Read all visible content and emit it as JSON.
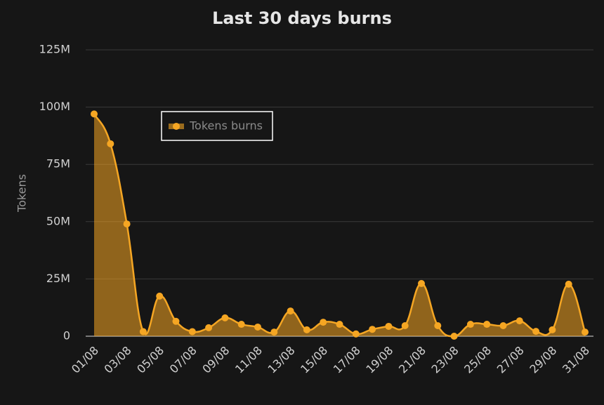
{
  "chart_data": {
    "type": "area",
    "title": "Last 30 days burns",
    "y_label": "Tokens",
    "categories": [
      "01/08",
      null,
      "03/08",
      null,
      "05/08",
      null,
      "07/08",
      null,
      "09/08",
      null,
      "11/08",
      null,
      "13/08",
      null,
      "15/08",
      null,
      "17/08",
      null,
      "19/08",
      null,
      "21/08",
      null,
      "23/08",
      null,
      "25/08",
      null,
      "27/08",
      null,
      "29/08",
      null,
      "31/08"
    ],
    "series": [
      {
        "name": "Tokens burns",
        "color": "#f5a623",
        "values": [
          97000000,
          84000000,
          49000000,
          2000000,
          17500000,
          6500000,
          2000000,
          3700000,
          8000000,
          5200000,
          4000000,
          1800000,
          11000000,
          2800000,
          6100000,
          5200000,
          1000000,
          3000000,
          4300000,
          4600000,
          23000000,
          4600000,
          0,
          5200000,
          5200000,
          4600000,
          6700000,
          2100000,
          2800000,
          22700000,
          1800000
        ]
      }
    ],
    "ylim": [
      0,
      125000000
    ],
    "yticks": [
      0,
      {
        "value": 25000000,
        "label": "25M"
      },
      {
        "value": 50000000,
        "label": "50M"
      },
      {
        "value": 75000000,
        "label": "75M"
      },
      {
        "value": 100000000,
        "label": "100M"
      },
      {
        "value": 125000000,
        "label": "125M"
      }
    ],
    "grid": true,
    "legend_position": "upper left"
  }
}
